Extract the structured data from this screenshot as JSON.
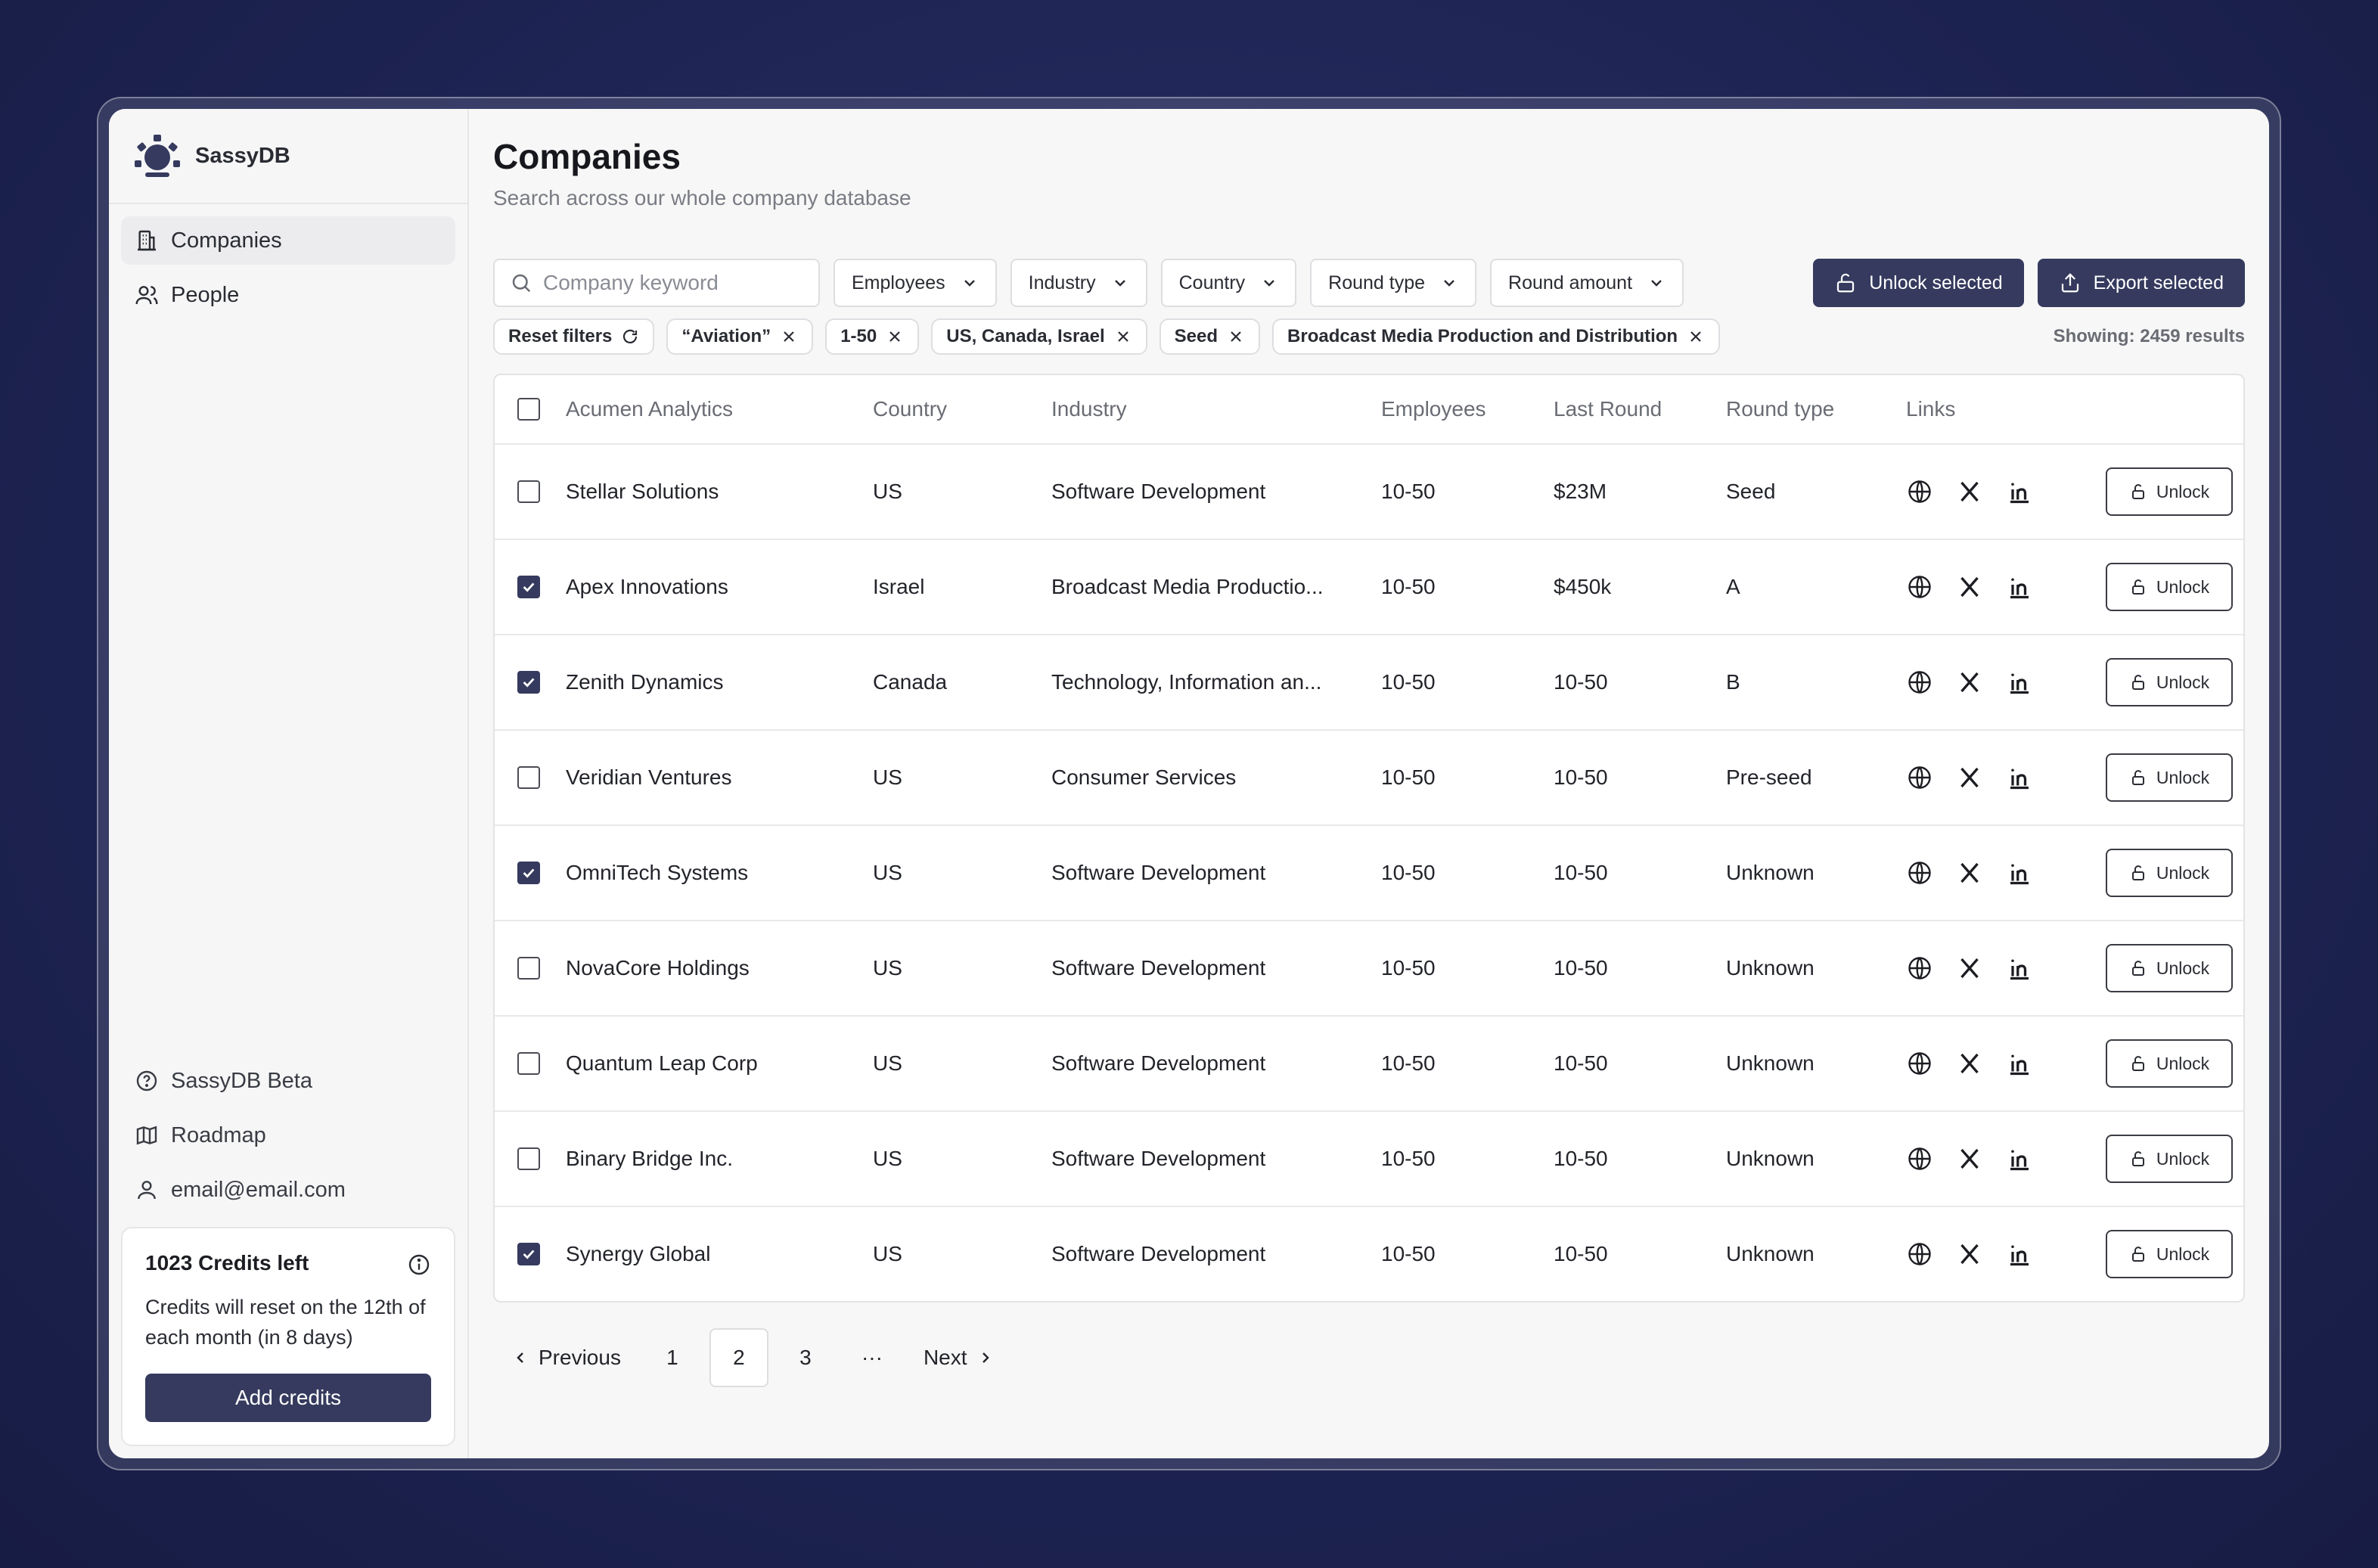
{
  "app": {
    "name": "SassyDB"
  },
  "sidebar": {
    "nav": [
      {
        "label": "Companies",
        "icon": "building-icon",
        "active": true
      },
      {
        "label": "People",
        "icon": "users-icon",
        "active": false
      }
    ],
    "bottom": [
      {
        "label": "SassyDB Beta",
        "icon": "help-circle-icon"
      },
      {
        "label": "Roadmap",
        "icon": "map-icon"
      },
      {
        "label": "email@email.com",
        "icon": "user-icon"
      }
    ],
    "credits": {
      "title": "1023 Credits left",
      "description": "Credits will reset on the 12th of each month (in 8 days)",
      "button": "Add credits"
    }
  },
  "page": {
    "title": "Companies",
    "subtitle": "Search across our whole company database"
  },
  "filters": {
    "search_placeholder": "Company keyword",
    "dropdowns": [
      "Employees",
      "Industry",
      "Country",
      "Round type",
      "Round amount"
    ],
    "unlock_selected": "Unlock selected",
    "export_selected": "Export selected"
  },
  "chips": {
    "reset": "Reset filters",
    "active": [
      "“Aviation”",
      "1-50",
      "US, Canada, Israel",
      "Seed",
      "Broadcast Media Production and Distribution"
    ],
    "results": "Showing: 2459 results"
  },
  "table": {
    "columns": [
      "Acumen Analytics",
      "Country",
      "Industry",
      "Employees",
      "Last Round",
      "Round type",
      "Links"
    ],
    "unlock_label": "Unlock",
    "rows": [
      {
        "name": "Stellar Solutions",
        "country": "US",
        "industry": "Software Development",
        "employees": "10-50",
        "last_round": "$23M",
        "round_type": "Seed",
        "checked": false
      },
      {
        "name": "Apex Innovations",
        "country": "Israel",
        "industry": "Broadcast Media Productio...",
        "employees": "10-50",
        "last_round": "$450k",
        "round_type": "A",
        "checked": true
      },
      {
        "name": "Zenith Dynamics",
        "country": "Canada",
        "industry": "Technology, Information an...",
        "employees": "10-50",
        "last_round": "10-50",
        "round_type": "B",
        "checked": true
      },
      {
        "name": "Veridian Ventures",
        "country": "US",
        "industry": "Consumer Services",
        "employees": "10-50",
        "last_round": "10-50",
        "round_type": "Pre-seed",
        "checked": false
      },
      {
        "name": "OmniTech Systems",
        "country": "US",
        "industry": "Software Development",
        "employees": "10-50",
        "last_round": "10-50",
        "round_type": "Unknown",
        "checked": true
      },
      {
        "name": "NovaCore Holdings",
        "country": "US",
        "industry": "Software Development",
        "employees": "10-50",
        "last_round": "10-50",
        "round_type": "Unknown",
        "checked": false
      },
      {
        "name": "Quantum Leap Corp",
        "country": "US",
        "industry": "Software Development",
        "employees": "10-50",
        "last_round": "10-50",
        "round_type": "Unknown",
        "checked": false
      },
      {
        "name": "Binary Bridge Inc.",
        "country": "US",
        "industry": "Software Development",
        "employees": "10-50",
        "last_round": "10-50",
        "round_type": "Unknown",
        "checked": false
      },
      {
        "name": "Synergy Global",
        "country": "US",
        "industry": "Software Development",
        "employees": "10-50",
        "last_round": "10-50",
        "round_type": "Unknown",
        "checked": true
      }
    ]
  },
  "pagination": {
    "previous": "Previous",
    "next": "Next",
    "pages": [
      "1",
      "2",
      "3"
    ],
    "current": "2",
    "ellipsis": "···"
  },
  "colors": {
    "accent": "#353a5e",
    "background": "#1e2453"
  }
}
